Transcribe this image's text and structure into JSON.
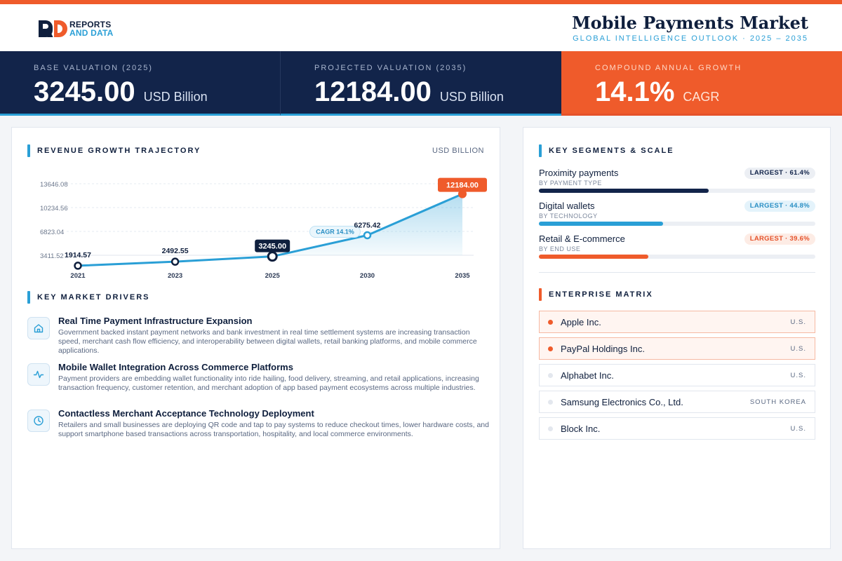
{
  "header": {
    "logo_line1": "REPORTS",
    "logo_line2": "AND DATA",
    "title": "Mobile Payments Market",
    "subtitle": "GLOBAL INTELLIGENCE OUTLOOK  ·  2025 – 2035"
  },
  "stats": [
    {
      "label": "BASE VALUATION (2025)",
      "value": "3245.00",
      "unit": "USD Billion"
    },
    {
      "label": "PROJECTED VALUATION (2035)",
      "value": "12184.00",
      "unit": "USD Billion"
    },
    {
      "label": "COMPOUND ANNUAL GROWTH",
      "value": "14.1%",
      "unit": "CAGR"
    }
  ],
  "revenue": {
    "section_title": "REVENUE GROWTH TRAJECTORY",
    "units_label": "USD BILLION"
  },
  "chart_data": {
    "type": "area",
    "title": "REVENUE GROWTH TRAJECTORY",
    "ylabel": "USD BILLION",
    "x": [
      "2021",
      "2023",
      "2025",
      "2030",
      "2035"
    ],
    "values": [
      1914.57,
      2492.55,
      3245.0,
      6275.42,
      12184.0
    ],
    "point_labels": [
      "1914.57",
      "2492.55",
      "3245.00",
      "6275.42",
      "12184.00"
    ],
    "y_ticks": [
      "13646.08",
      "10234.56",
      "6823.04",
      "3411.52"
    ],
    "y_tick_values": [
      13646.08,
      10234.56,
      6823.04,
      3411.52
    ],
    "ylim": [
      3411.52,
      13646.08
    ],
    "annotation": "CAGR 14.1%",
    "grid": true,
    "colors": {
      "line": "#2a9fd6",
      "highlight": "#ef5b2b",
      "base": "#0f1f3d"
    }
  },
  "drivers": {
    "section_title": "KEY MARKET DRIVERS",
    "items": [
      {
        "icon": "home-icon",
        "title": "Real Time Payment Infrastructure Expansion",
        "desc": "Government backed instant payment networks and bank investment in real time settlement systems are increasing transaction speed, merchant cash flow efficiency, and interoperability between digital wallets, retail banking platforms, and mobile commerce applications."
      },
      {
        "icon": "activity-icon",
        "title": "Mobile Wallet Integration Across Commerce Platforms",
        "desc": "Payment providers are embedding wallet functionality into ride hailing, food delivery, streaming, and retail applications, increasing transaction frequency, customer retention, and merchant adoption of app based payment ecosystems across multiple industries."
      },
      {
        "icon": "clock-icon",
        "title": "Contactless Merchant Acceptance Technology Deployment",
        "desc": "Retailers and small businesses are deploying QR code and tap to pay systems to reduce checkout times, lower hardware costs, and support smartphone based transactions across transportation, hospitality, and local commerce environments."
      }
    ]
  },
  "segments": {
    "section_title": "KEY SEGMENTS & SCALE",
    "items": [
      {
        "name": "Proximity payments",
        "sub": "BY PAYMENT TYPE",
        "badge": "LARGEST · 61.4%",
        "share": 61.4,
        "color": "#12244a",
        "badge_bg": "#eceff4",
        "badge_fg": "#12244a"
      },
      {
        "name": "Digital wallets",
        "sub": "BY TECHNOLOGY",
        "badge": "LARGEST · 44.8%",
        "share": 44.8,
        "color": "#2a9fd6",
        "badge_bg": "#e4f3fb",
        "badge_fg": "#2a8fc4"
      },
      {
        "name": "Retail & E-commerce",
        "sub": "BY END USE",
        "badge": "LARGEST · 39.6%",
        "share": 39.6,
        "color": "#ef5b2b",
        "badge_bg": "#fdece5",
        "badge_fg": "#e5522a"
      }
    ]
  },
  "matrix": {
    "section_title": "ENTERPRISE MATRIX",
    "items": [
      {
        "name": "Apple Inc.",
        "country": "U.S.",
        "highlight": true
      },
      {
        "name": "PayPal Holdings Inc.",
        "country": "U.S.",
        "highlight": true
      },
      {
        "name": "Alphabet Inc.",
        "country": "U.S.",
        "highlight": false
      },
      {
        "name": "Samsung Electronics Co., Ltd.",
        "country": "SOUTH KOREA",
        "highlight": false
      },
      {
        "name": "Block Inc.",
        "country": "U.S.",
        "highlight": false
      }
    ]
  }
}
